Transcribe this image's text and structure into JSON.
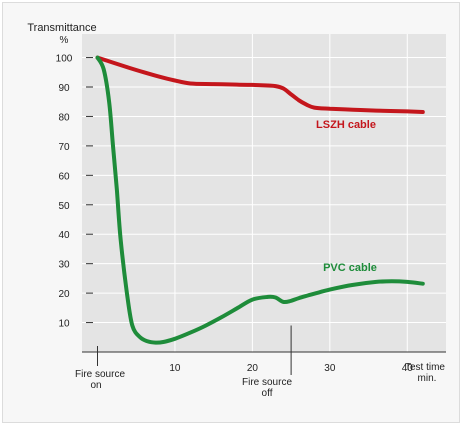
{
  "chart_data": {
    "type": "line",
    "ylabel": "Transmittance",
    "yunit": "%",
    "xlabel": "Test time",
    "xunit": "min.",
    "xlim": [
      -2,
      45
    ],
    "ylim": [
      0,
      108
    ],
    "y_ticks": [
      10,
      20,
      30,
      40,
      50,
      60,
      70,
      80,
      90,
      100
    ],
    "x_ticks": [
      10,
      20,
      30,
      40
    ],
    "grid": true,
    "annotations": [
      {
        "x": 0,
        "lines": [
          "Fire source",
          "on"
        ]
      },
      {
        "x": 25,
        "lines": [
          "Fire source",
          "off"
        ]
      }
    ],
    "series": [
      {
        "name": "LSZH cable",
        "color": "#c4161c",
        "x": [
          0,
          2,
          4,
          6,
          8,
          10,
          12,
          15,
          18,
          20,
          22,
          23,
          24,
          25,
          26,
          27,
          28,
          30,
          33,
          36,
          40,
          42
        ],
        "y": [
          100,
          98.3,
          96.6,
          95,
          93.5,
          92.2,
          91.2,
          91,
          90.8,
          90.7,
          90.5,
          90.3,
          89.5,
          87.5,
          85.5,
          84,
          83,
          82.6,
          82.3,
          82,
          81.7,
          81.5
        ]
      },
      {
        "name": "PVC cable",
        "color": "#1e8c3a",
        "x": [
          0,
          0.8,
          1.5,
          2,
          2.5,
          3,
          3.8,
          4.5,
          5.5,
          6.5,
          7.5,
          8.5,
          10,
          12,
          14,
          16,
          18,
          20,
          22,
          23,
          24,
          25,
          26,
          28,
          30,
          33,
          36,
          38,
          40,
          42
        ],
        "y": [
          100,
          96,
          85,
          70,
          55,
          38,
          20,
          9,
          5,
          3.6,
          3.2,
          3.4,
          4.5,
          6.6,
          9,
          11.8,
          14.8,
          17.8,
          18.7,
          18.5,
          17,
          17.4,
          18.3,
          19.8,
          21.2,
          22.8,
          23.8,
          24,
          23.8,
          23.2
        ]
      }
    ]
  }
}
